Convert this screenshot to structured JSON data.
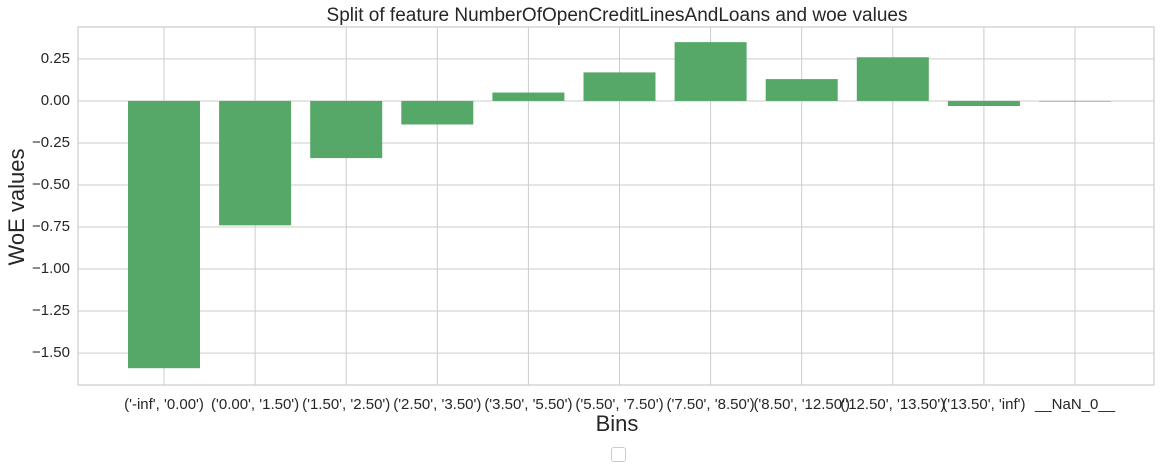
{
  "chart_data": {
    "type": "bar",
    "title": "Split of feature NumberOfOpenCreditLinesAndLoans and woe values",
    "xlabel": "Bins",
    "ylabel": "WoE values",
    "categories": [
      "('-inf', '0.00')",
      "('0.00', '1.50')",
      "('1.50', '2.50')",
      "('2.50', '3.50')",
      "('3.50', '5.50')",
      "('5.50', '7.50')",
      "('7.50', '8.50')",
      "('8.50', '12.50')",
      "('12.50', '13.50')",
      "('13.50', 'inf')",
      "__NaN_0__"
    ],
    "values": [
      -1.59,
      -0.74,
      -0.34,
      -0.14,
      0.05,
      0.17,
      0.35,
      0.13,
      0.26,
      -0.03,
      0.0
    ],
    "ylim": [
      -1.69,
      0.44
    ],
    "yticks": [
      0.25,
      0.0,
      -0.25,
      -0.5,
      -0.75,
      -1.0,
      -1.25,
      -1.5
    ],
    "ytick_labels": [
      "0.25",
      "0.00",
      "−0.25",
      "−0.50",
      "−0.75",
      "−1.00",
      "−1.25",
      "−1.50"
    ],
    "grid": true,
    "legend": "lower-center",
    "bar_color": "#55a868",
    "grid_color": "#cccccc"
  }
}
